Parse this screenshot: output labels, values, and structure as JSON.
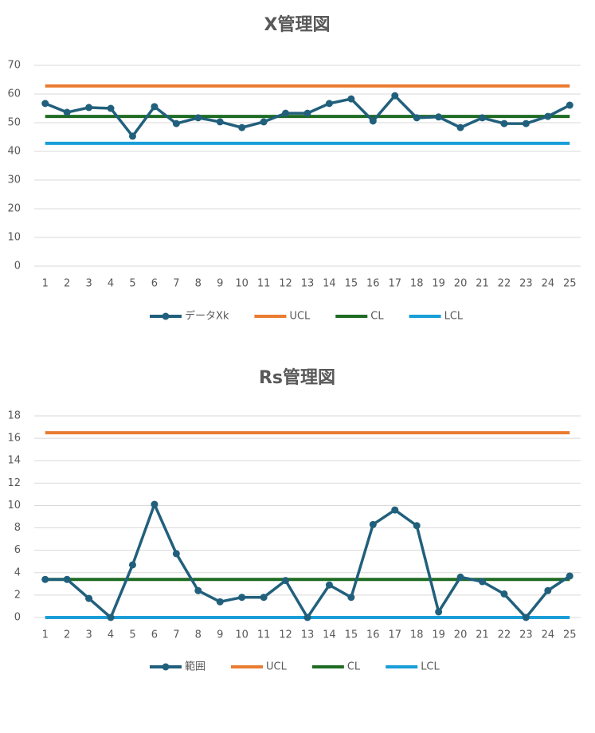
{
  "charts": [
    {
      "type": "line",
      "title": "X管理図",
      "categories": [
        "1",
        "2",
        "3",
        "4",
        "5",
        "6",
        "7",
        "8",
        "9",
        "10",
        "11",
        "12",
        "13",
        "14",
        "15",
        "16",
        "17",
        "18",
        "19",
        "20",
        "21",
        "22",
        "23",
        "24",
        "25"
      ],
      "ylim": [
        0,
        70
      ],
      "yticks": [
        0,
        10,
        20,
        30,
        40,
        50,
        60,
        70
      ],
      "grid": true,
      "legend": "bottom",
      "series": [
        {
          "name": "データXk",
          "color": "#21607c",
          "marker": true,
          "values": [
            56.7,
            53.6,
            55.3,
            55,
            45.3,
            55.6,
            49.7,
            51.7,
            50.3,
            48.3,
            50.3,
            53.3,
            53.3,
            56.7,
            58.3,
            50.6,
            59.4,
            51.7,
            52,
            48.3,
            51.7,
            49.7,
            49.7,
            52.2,
            56.1
          ]
        },
        {
          "name": "UCL",
          "color": "#e97c30",
          "marker": false,
          "values": [
            62.8,
            62.8,
            62.8,
            62.8,
            62.8,
            62.8,
            62.8,
            62.8,
            62.8,
            62.8,
            62.8,
            62.8,
            62.8,
            62.8,
            62.8,
            62.8,
            62.8,
            62.8,
            62.8,
            62.8,
            62.8,
            62.8,
            62.8,
            62.8,
            62.8
          ]
        },
        {
          "name": "CL",
          "color": "#1e6b24",
          "marker": false,
          "values": [
            52.2,
            52.2,
            52.2,
            52.2,
            52.2,
            52.2,
            52.2,
            52.2,
            52.2,
            52.2,
            52.2,
            52.2,
            52.2,
            52.2,
            52.2,
            52.2,
            52.2,
            52.2,
            52.2,
            52.2,
            52.2,
            52.2,
            52.2,
            52.2,
            52.2
          ]
        },
        {
          "name": "LCL",
          "color": "#1a9ed8",
          "marker": false,
          "values": [
            42.8,
            42.8,
            42.8,
            42.8,
            42.8,
            42.8,
            42.8,
            42.8,
            42.8,
            42.8,
            42.8,
            42.8,
            42.8,
            42.8,
            42.8,
            42.8,
            42.8,
            42.8,
            42.8,
            42.8,
            42.8,
            42.8,
            42.8,
            42.8,
            42.8
          ]
        }
      ]
    },
    {
      "type": "line",
      "title": "Rs管理図",
      "categories": [
        "1",
        "2",
        "3",
        "4",
        "5",
        "6",
        "7",
        "8",
        "9",
        "10",
        "11",
        "12",
        "13",
        "14",
        "15",
        "16",
        "17",
        "18",
        "19",
        "20",
        "21",
        "22",
        "23",
        "24",
        "25"
      ],
      "ylim": [
        0,
        18
      ],
      "yticks": [
        0,
        2,
        4,
        6,
        8,
        10,
        12,
        14,
        16,
        18
      ],
      "grid": true,
      "legend": "bottom",
      "series": [
        {
          "name": "範囲",
          "color": "#21607c",
          "marker": true,
          "values": [
            3.4,
            3.4,
            1.7,
            0,
            4.7,
            10.1,
            5.7,
            2.4,
            1.4,
            1.8,
            1.8,
            3.3,
            0,
            2.9,
            1.8,
            8.3,
            9.6,
            8.2,
            0.5,
            3.6,
            3.2,
            2.1,
            0,
            2.4,
            3.7
          ]
        },
        {
          "name": "UCL",
          "color": "#e97c30",
          "marker": false,
          "values": [
            16.5,
            16.5,
            16.5,
            16.5,
            16.5,
            16.5,
            16.5,
            16.5,
            16.5,
            16.5,
            16.5,
            16.5,
            16.5,
            16.5,
            16.5,
            16.5,
            16.5,
            16.5,
            16.5,
            16.5,
            16.5,
            16.5,
            16.5,
            16.5,
            16.5
          ]
        },
        {
          "name": "CL",
          "color": "#1e6b24",
          "marker": false,
          "values": [
            3.4,
            3.4,
            3.4,
            3.4,
            3.4,
            3.4,
            3.4,
            3.4,
            3.4,
            3.4,
            3.4,
            3.4,
            3.4,
            3.4,
            3.4,
            3.4,
            3.4,
            3.4,
            3.4,
            3.4,
            3.4,
            3.4,
            3.4,
            3.4,
            3.4
          ]
        },
        {
          "name": "LCL",
          "color": "#1a9ed8",
          "marker": false,
          "values": [
            0,
            0,
            0,
            0,
            0,
            0,
            0,
            0,
            0,
            0,
            0,
            0,
            0,
            0,
            0,
            0,
            0,
            0,
            0,
            0,
            0,
            0,
            0,
            0,
            0
          ]
        }
      ]
    }
  ]
}
